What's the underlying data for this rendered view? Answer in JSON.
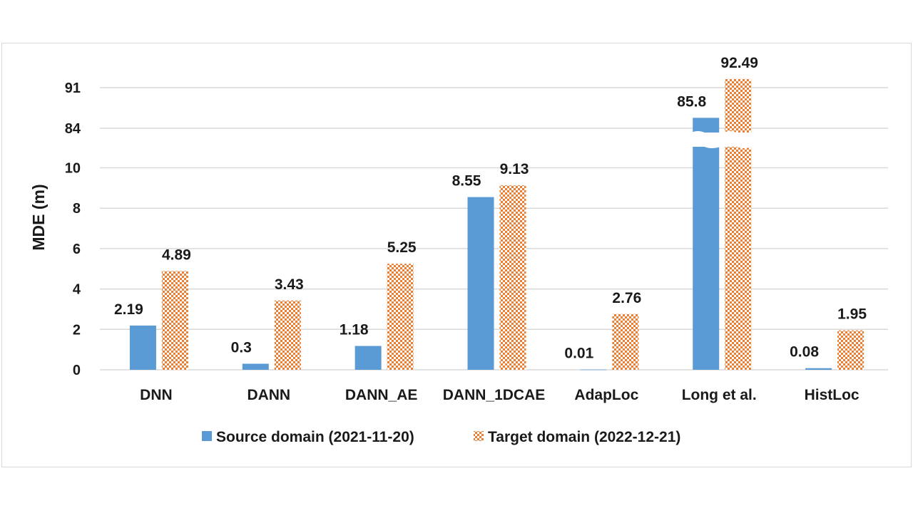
{
  "chart_data": {
    "type": "bar",
    "ylabel": "MDE (m)",
    "xlabel": "",
    "title": "",
    "broken_axis": {
      "lower_ticks": [
        0,
        2,
        4,
        6,
        8,
        10
      ],
      "upper_ticks": [
        84,
        91
      ]
    },
    "categories": [
      "DNN",
      "DANN",
      "DANN_AE",
      "DANN_1DCAE",
      "AdapLoc",
      "Long et al.",
      "HistLoc"
    ],
    "series": [
      {
        "name": "Source domain (2021-11-20)",
        "values": [
          2.19,
          0.3,
          1.18,
          8.55,
          0.01,
          85.8,
          0.08
        ],
        "labels": [
          "2.19",
          "0.3",
          "1.18",
          "8.55",
          "0.01",
          "85.8",
          "0.08"
        ],
        "color": "#5b9bd5",
        "pattern": "solid"
      },
      {
        "name": "Target domain (2022-12-21)",
        "values": [
          4.89,
          3.43,
          5.25,
          9.13,
          2.76,
          92.49,
          1.95
        ],
        "labels": [
          "4.89",
          "3.43",
          "5.25",
          "9.13",
          "2.76",
          "92.49",
          "1.95"
        ],
        "color": "#ed7d31",
        "pattern": "checkerboard"
      }
    ],
    "grid": true,
    "legend_position": "bottom"
  }
}
